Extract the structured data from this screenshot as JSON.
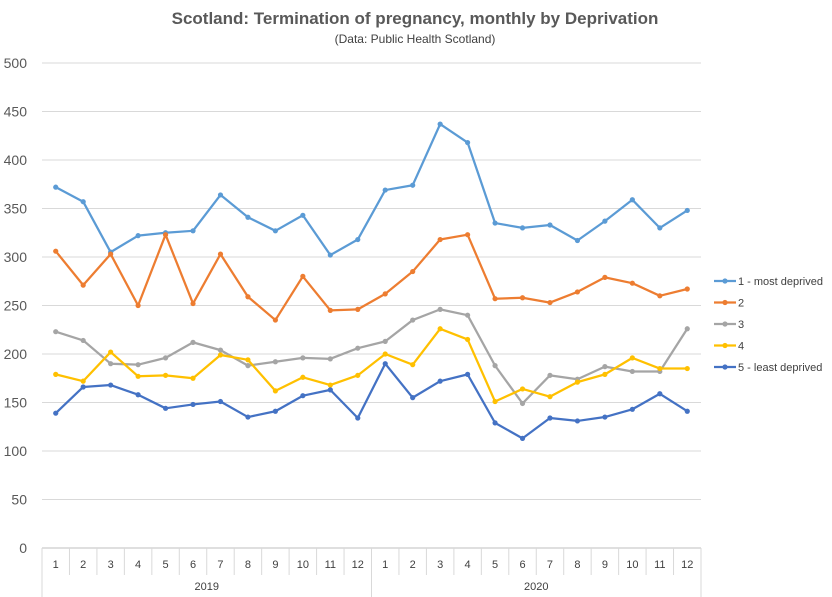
{
  "chart_data": {
    "type": "line",
    "title": "Scotland: Termination of pregnancy, monthly by Deprivation",
    "subtitle": "(Data: Public Health Scotland)",
    "ylim": [
      0,
      500
    ],
    "yticks": [
      "0",
      "50",
      "100",
      "150",
      "200",
      "250",
      "300",
      "350",
      "400",
      "450",
      "500"
    ],
    "categories": [
      "1",
      "2",
      "3",
      "4",
      "5",
      "6",
      "7",
      "8",
      "9",
      "10",
      "11",
      "12",
      "1",
      "2",
      "3",
      "4",
      "5",
      "6",
      "7",
      "8",
      "9",
      "10",
      "11",
      "12"
    ],
    "groups": [
      {
        "label": "2019",
        "count": 12
      },
      {
        "label": "2020",
        "count": 12
      }
    ],
    "grid": true,
    "legend": "right",
    "series": [
      {
        "name": "1 - most deprived",
        "color": "#5B9BD5",
        "values": [
          372,
          357,
          305,
          322,
          325,
          327,
          364,
          341,
          327,
          343,
          302,
          318,
          369,
          374,
          437,
          418,
          335,
          330,
          333,
          317,
          337,
          359,
          330,
          348
        ]
      },
      {
        "name": "2",
        "color": "#ED7D31",
        "values": [
          306,
          271,
          303,
          250,
          323,
          252,
          303,
          259,
          235,
          280,
          245,
          246,
          262,
          285,
          318,
          323,
          257,
          258,
          253,
          264,
          279,
          273,
          260,
          267
        ]
      },
      {
        "name": "3",
        "color": "#A5A5A5",
        "values": [
          223,
          214,
          190,
          189,
          196,
          212,
          204,
          188,
          192,
          196,
          195,
          206,
          213,
          235,
          246,
          240,
          188,
          149,
          178,
          174,
          187,
          182,
          182,
          226
        ]
      },
      {
        "name": "4",
        "color": "#FFC000",
        "values": [
          179,
          172,
          202,
          177,
          178,
          175,
          199,
          194,
          162,
          176,
          168,
          178,
          200,
          189,
          226,
          215,
          151,
          164,
          156,
          171,
          179,
          196,
          185,
          185
        ]
      },
      {
        "name": "5 - least deprived",
        "color": "#4472C4",
        "values": [
          139,
          166,
          168,
          158,
          144,
          148,
          151,
          135,
          141,
          157,
          163,
          134,
          190,
          155,
          172,
          179,
          129,
          113,
          134,
          131,
          135,
          143,
          159,
          141
        ]
      }
    ]
  }
}
